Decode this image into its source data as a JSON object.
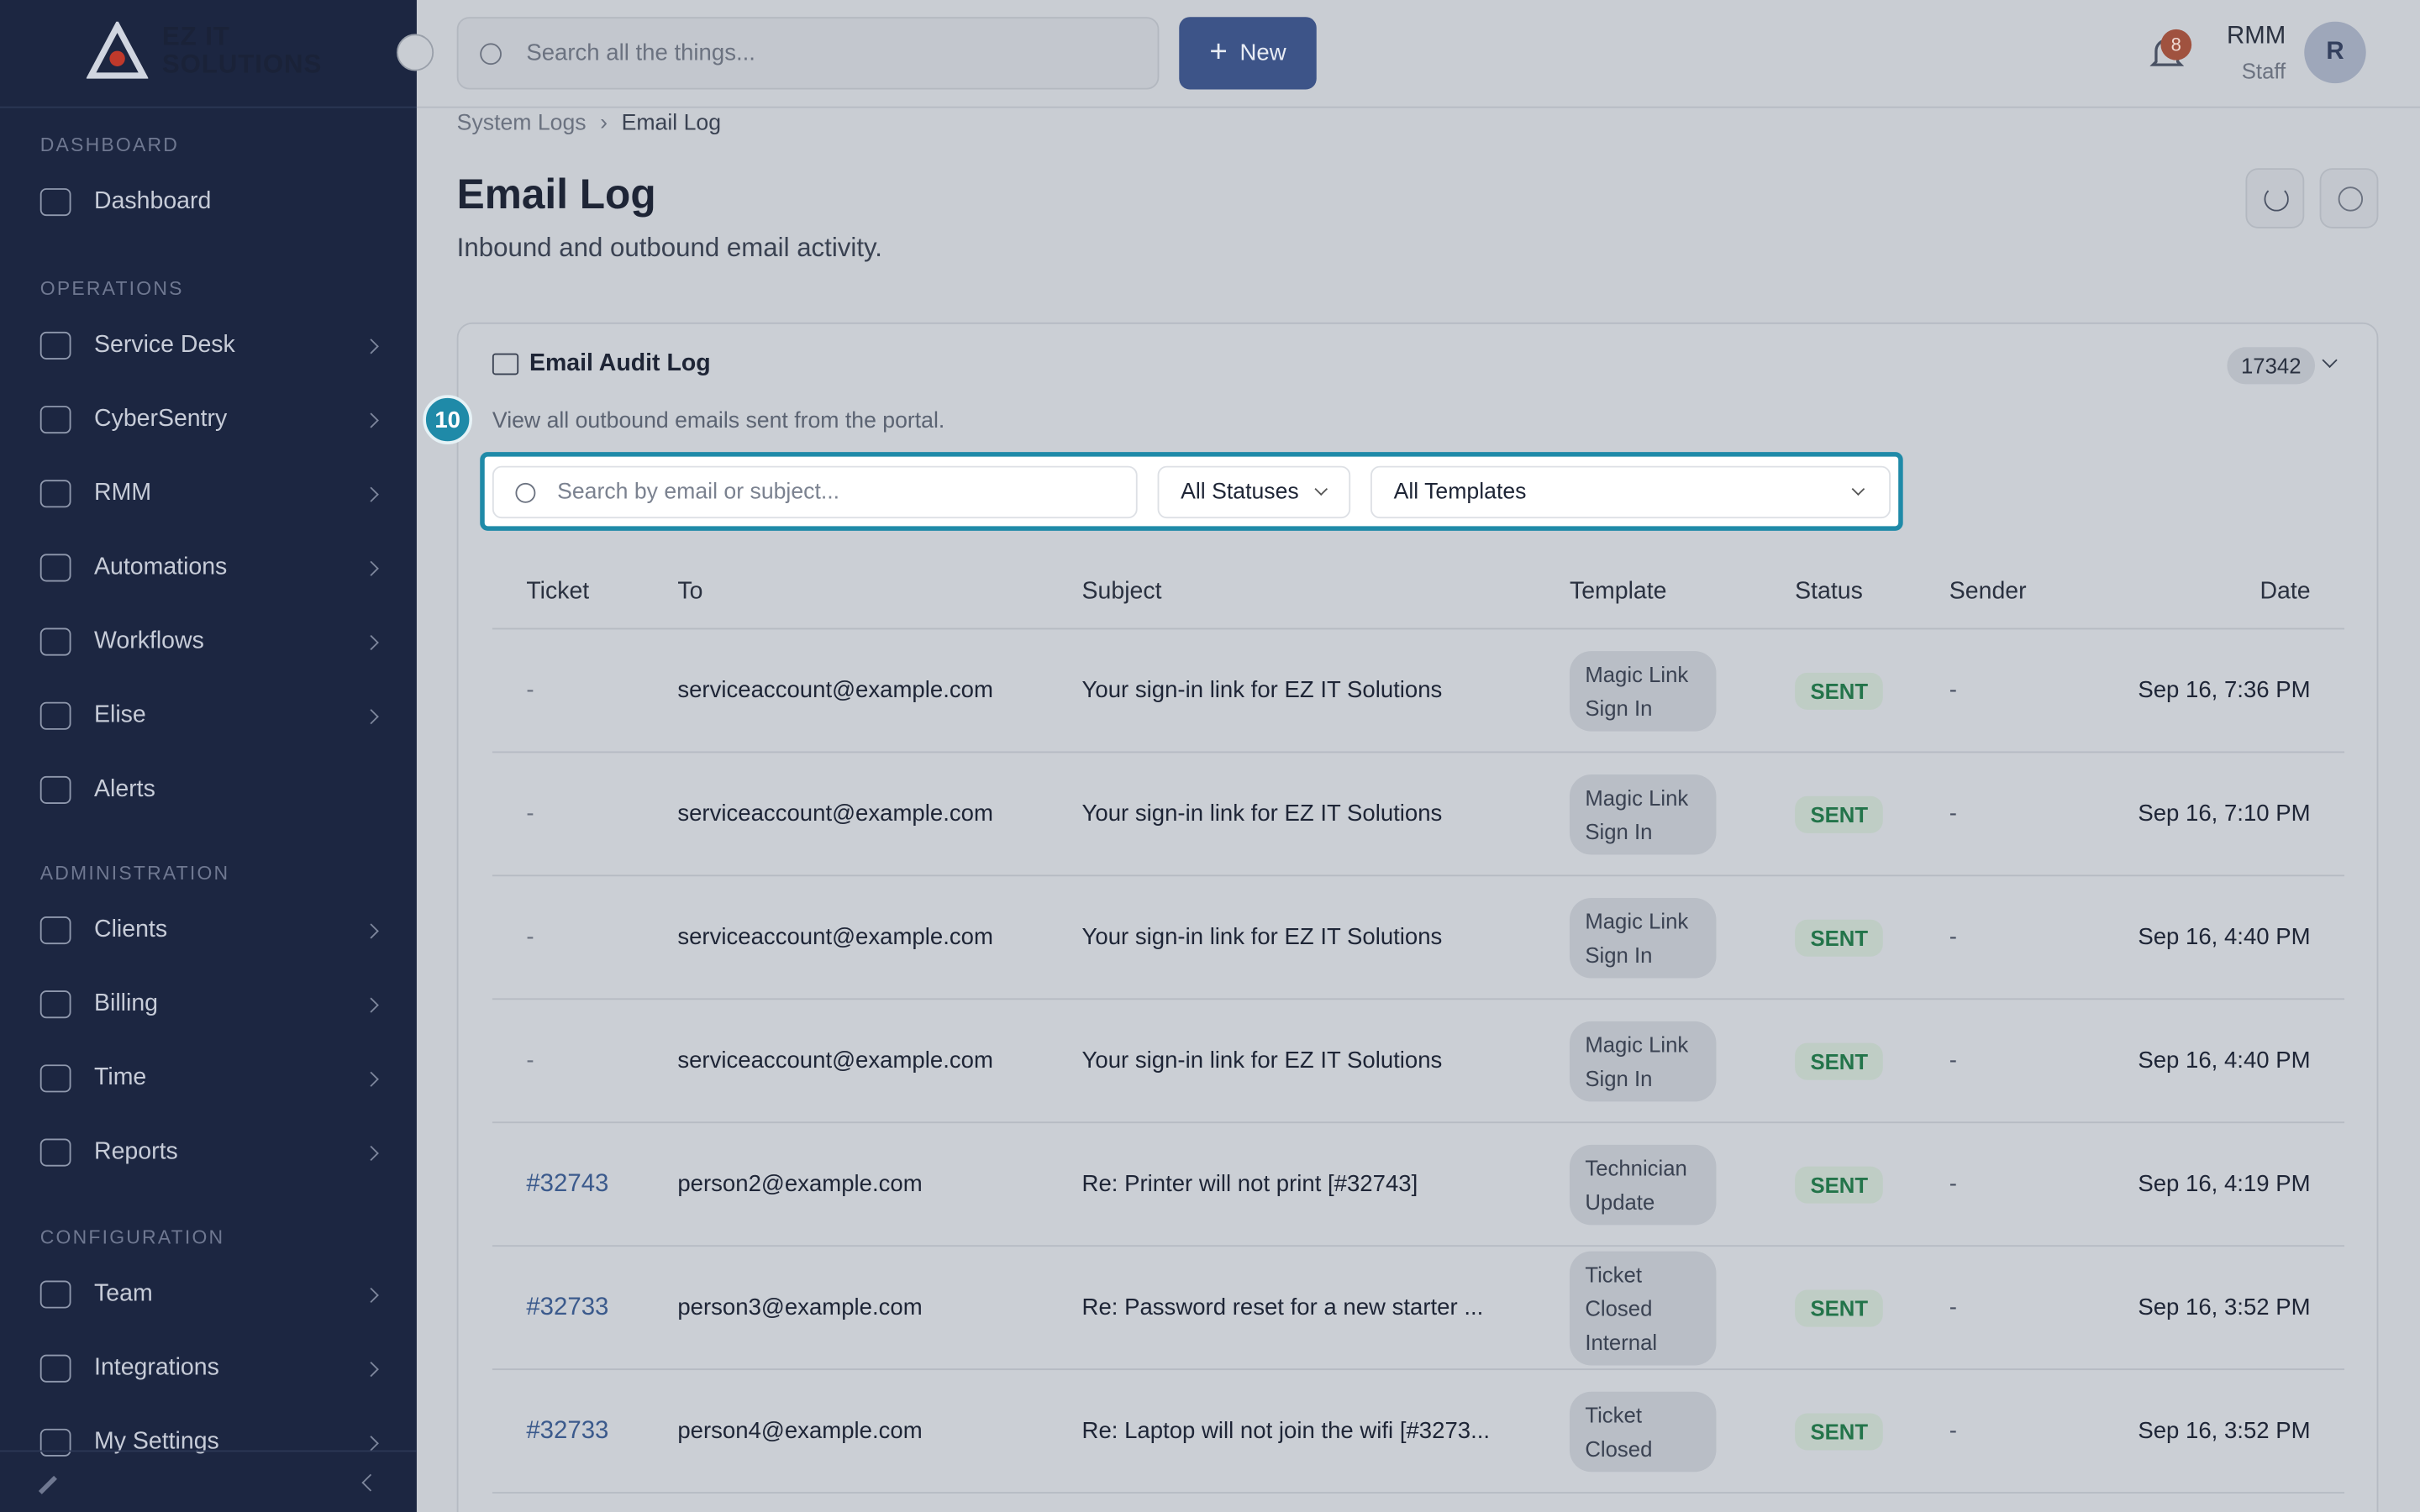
{
  "sidebar": {
    "logo": [
      "EZ IT",
      "SOLUTIONS"
    ],
    "sections": [
      {
        "label": "DASHBOARD",
        "items": [
          "Dashboard"
        ]
      },
      {
        "label": "OPERATIONS",
        "items": [
          "Service Desk",
          "CyberSentry",
          "RMM",
          "Automations",
          "Workflows",
          "Elise",
          "Alerts"
        ]
      },
      {
        "label": "ADMINISTRATION",
        "items": [
          "Clients",
          "Billing",
          "Time",
          "Reports"
        ]
      },
      {
        "label": "CONFIGURATION",
        "items": [
          "Team",
          "Integrations",
          "My Settings"
        ]
      }
    ]
  },
  "topbar": {
    "search_placeholder": "Search all the things...",
    "new_button": "New",
    "notifications": 8,
    "user_name": "RMM",
    "user_role": "Staff",
    "avatar": "R"
  },
  "breadcrumb": [
    "System Logs",
    "Email Log"
  ],
  "header": {
    "title": "Email Log",
    "subtitle": "Inbound and outbound email activity."
  },
  "card": {
    "title": "Email Audit Log",
    "count": 17342,
    "step": 10,
    "description": "View all outbound emails sent from the portal.",
    "search_placeholder": "Search by email or subject...",
    "status_filter": "All Statuses",
    "template_filter": "All Templates"
  },
  "table": {
    "columns": [
      "Ticket",
      "To",
      "Subject",
      "Template",
      "Status",
      "Sender",
      "Date"
    ],
    "rows": [
      [
        "-",
        "serviceaccount@example.com",
        "Your sign-in link for EZ IT Solutions",
        "Magic Link Sign In",
        "SENT",
        "-",
        "Sep 16, 7:36 PM"
      ],
      [
        "-",
        "serviceaccount@example.com",
        "Your sign-in link for EZ IT Solutions",
        "Magic Link Sign In",
        "SENT",
        "-",
        "Sep 16, 7:10 PM"
      ],
      [
        "-",
        "serviceaccount@example.com",
        "Your sign-in link for EZ IT Solutions",
        "Magic Link Sign In",
        "SENT",
        "-",
        "Sep 16, 4:40 PM"
      ],
      [
        "-",
        "serviceaccount@example.com",
        "Your sign-in link for EZ IT Solutions",
        "Magic Link Sign In",
        "SENT",
        "-",
        "Sep 16, 4:40 PM"
      ],
      [
        "#32743",
        "person2@example.com",
        "Re: Printer will not print [#32743]",
        "Technician Update",
        "SENT",
        "-",
        "Sep 16, 4:19 PM"
      ],
      [
        "#32733",
        "person3@example.com",
        "Re: Password reset for a new starter ...",
        "Ticket Closed Internal",
        "SENT",
        "-",
        "Sep 16, 3:52 PM"
      ],
      [
        "#32733",
        "person4@example.com",
        "Re: Laptop will not join the wifi [#3273...",
        "Ticket Closed",
        "SENT",
        "-",
        "Sep 16, 3:52 PM"
      ]
    ]
  }
}
